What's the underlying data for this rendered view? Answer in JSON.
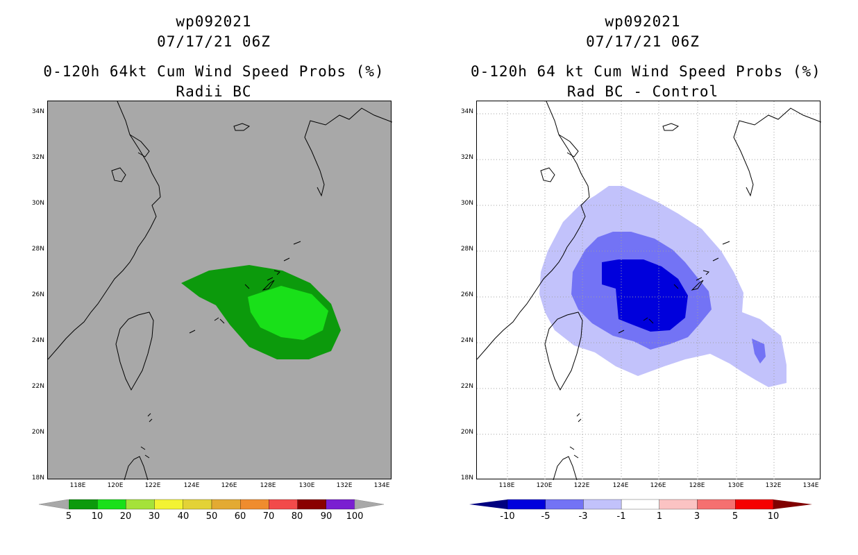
{
  "left_panel": {
    "storm_id": "wp092021",
    "datetime": "07/17/21 06Z",
    "title": "0-120h 64kt Cum Wind Speed Probs (%)",
    "subtitle": "Radii BC",
    "colorbar_labels": [
      "5",
      "10",
      "20",
      "30",
      "40",
      "50",
      "60",
      "70",
      "80",
      "90",
      "100"
    ],
    "colorbar_colors": [
      "#0c9a0c",
      "#19e019",
      "#a5e23a",
      "#f3f332",
      "#e3d236",
      "#e3aa32",
      "#ef8c2e",
      "#f24a4a",
      "#8a0000",
      "#7a1fd1"
    ]
  },
  "right_panel": {
    "storm_id": "wp092021",
    "datetime": "07/17/21 06Z",
    "title": "0-120h 64 kt Cum Wind Speed Probs (%)",
    "subtitle": "Rad BC - Control",
    "colorbar_labels": [
      "-10",
      "-5",
      "-3",
      "-1",
      "1",
      "3",
      "5",
      "10"
    ],
    "colorbar_colors": [
      "#0000dc",
      "#7373f5",
      "#c2c2fb",
      "#ffffff",
      "#fbc3c3",
      "#f57070",
      "#f50000"
    ],
    "colorbar_end_low": "#000080",
    "colorbar_end_high": "#800000"
  },
  "axes": {
    "lat_labels": [
      "34N",
      "32N",
      "30N",
      "28N",
      "26N",
      "24N",
      "22N",
      "20N",
      "18N"
    ],
    "lon_labels": [
      "118E",
      "120E",
      "122E",
      "124E",
      "126E",
      "128E",
      "130E",
      "132E",
      "134E"
    ]
  }
}
